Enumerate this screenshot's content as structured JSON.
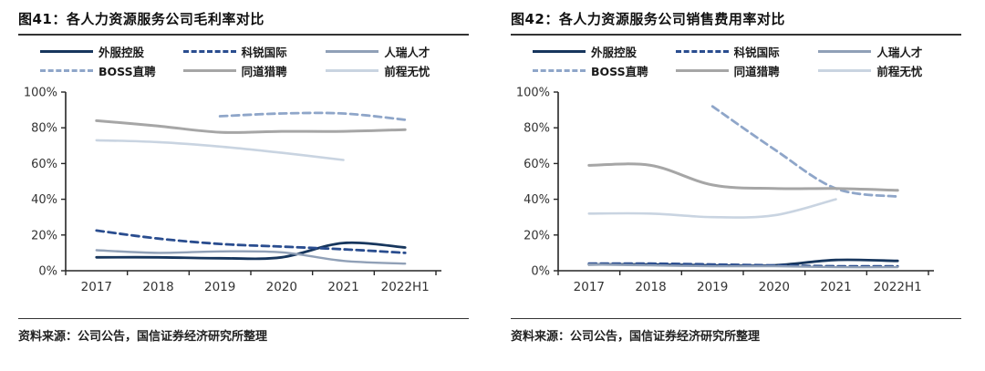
{
  "source_note": "资料来源：公司公告，国信证券经济研究所整理",
  "axis": {
    "color": "#262626",
    "label_color": "#333333"
  },
  "chart_data": [
    {
      "type": "line",
      "title": "图41：各人力资源服务公司毛利率对比",
      "categories": [
        "2017",
        "2018",
        "2019",
        "2020",
        "2021",
        "2022H1"
      ],
      "y_ticks": [
        "0%",
        "20%",
        "40%",
        "60%",
        "80%",
        "100%"
      ],
      "ylim": [
        0,
        100
      ],
      "grid": false,
      "legend_position": "top",
      "series": [
        {
          "name": "外服控股",
          "color": "#17365d",
          "dash": "solid",
          "width": 2.8,
          "values": [
            7.5,
            7.5,
            7,
            7.5,
            15.5,
            13
          ]
        },
        {
          "name": "科锐国际",
          "color": "#2a4d8f",
          "dash": "dashed",
          "width": 2.8,
          "values": [
            22.5,
            18,
            15,
            13.5,
            12,
            10
          ]
        },
        {
          "name": "人瑞人才",
          "color": "#90a0b7",
          "dash": "solid",
          "width": 2.4,
          "values": [
            11.5,
            10,
            10.8,
            10.3,
            5.5,
            4
          ]
        },
        {
          "name": "BOSS直聘",
          "color": "#8fa6c9",
          "dash": "dashed",
          "width": 2.8,
          "values": [
            null,
            null,
            86.5,
            88,
            88,
            84.5
          ]
        },
        {
          "name": "同道猎聘",
          "color": "#a6a6a6",
          "dash": "solid",
          "width": 3.0,
          "values": [
            84,
            81,
            77.5,
            78,
            78,
            79
          ]
        },
        {
          "name": "前程无忧",
          "color": "#c9d4e1",
          "dash": "solid",
          "width": 2.6,
          "values": [
            73,
            72,
            69.5,
            66,
            62,
            null
          ]
        }
      ]
    },
    {
      "type": "line",
      "title": "图42：各人力资源服务公司销售费用率对比",
      "categories": [
        "2017",
        "2018",
        "2019",
        "2020",
        "2021",
        "2022H1"
      ],
      "y_ticks": [
        "0%",
        "20%",
        "40%",
        "60%",
        "80%",
        "100%"
      ],
      "ylim": [
        0,
        100
      ],
      "grid": false,
      "legend_position": "top",
      "series": [
        {
          "name": "外服控股",
          "color": "#17365d",
          "dash": "solid",
          "width": 2.8,
          "values": [
            3.5,
            3.5,
            3,
            3,
            6,
            5.5
          ]
        },
        {
          "name": "科锐国际",
          "color": "#2a4d8f",
          "dash": "dashed",
          "width": 2.8,
          "values": [
            4,
            4,
            3.5,
            3,
            2.5,
            2.5
          ]
        },
        {
          "name": "人瑞人才",
          "color": "#90a0b7",
          "dash": "solid",
          "width": 2.4,
          "values": [
            3.5,
            3,
            2.5,
            2.5,
            2,
            2
          ]
        },
        {
          "name": "BOSS直聘",
          "color": "#8fa6c9",
          "dash": "dashed",
          "width": 2.8,
          "values": [
            null,
            null,
            92,
            68,
            46,
            41.5
          ]
        },
        {
          "name": "同道猎聘",
          "color": "#a6a6a6",
          "dash": "solid",
          "width": 3.0,
          "values": [
            59,
            59,
            48,
            46,
            46,
            45
          ]
        },
        {
          "name": "前程无忧",
          "color": "#c9d4e1",
          "dash": "solid",
          "width": 2.6,
          "values": [
            32,
            32,
            30,
            31,
            40,
            null
          ]
        }
      ]
    }
  ]
}
